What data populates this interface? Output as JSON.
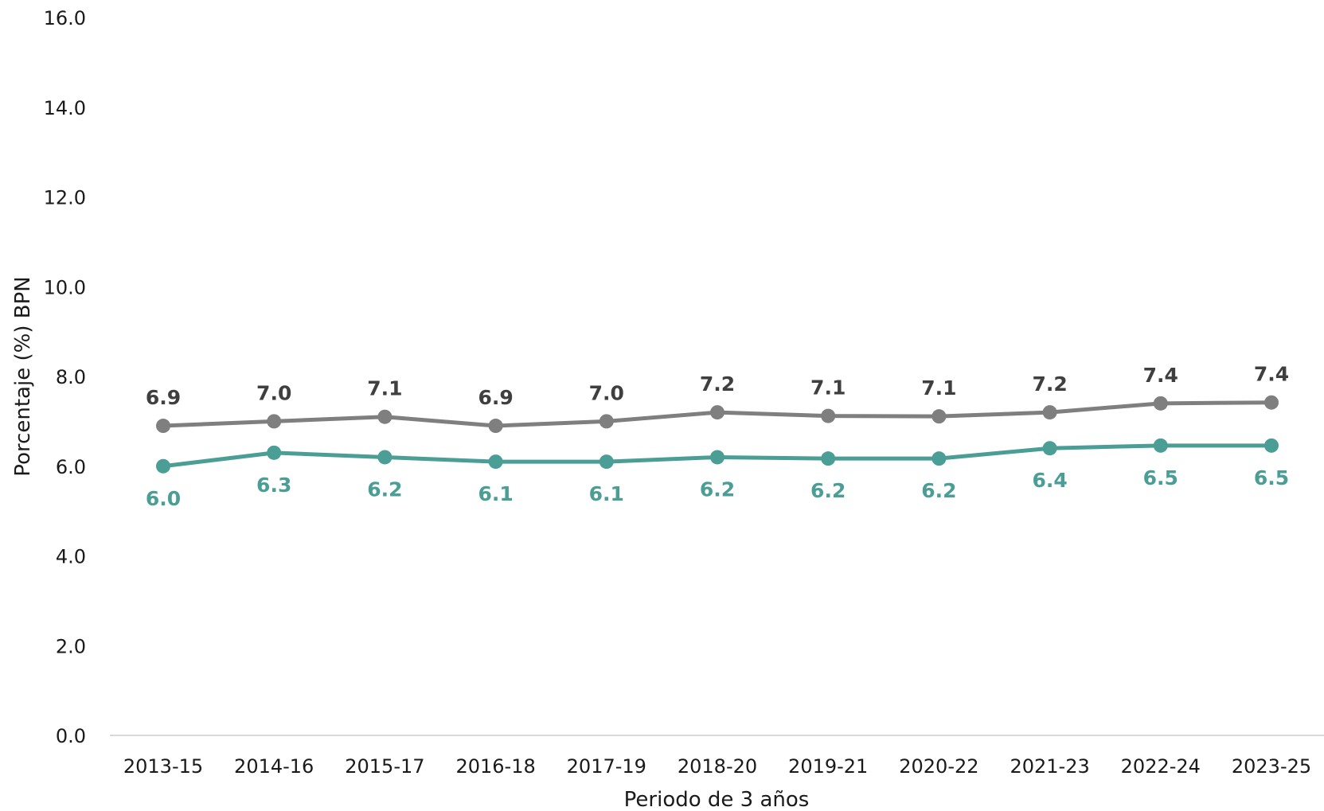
{
  "chart_data": {
    "type": "line",
    "title": "",
    "xlabel": "Periodo de 3 años",
    "ylabel": "Porcentaje (%) BPN",
    "ylim": [
      0,
      16
    ],
    "ytick_step": 2,
    "ytick_labels": [
      "0.0",
      "2.0",
      "4.0",
      "6.0",
      "8.0",
      "10.0",
      "12.0",
      "14.0",
      "16.0"
    ],
    "grid": false,
    "legend": "none",
    "categories": [
      "2013-15",
      "2014-16",
      "2015-17",
      "2016-18",
      "2017-19",
      "2018-20",
      "2019-21",
      "2020-22",
      "2021-23",
      "2022-24",
      "2023-25"
    ],
    "series": [
      {
        "color": "#7f7f7f",
        "label_color": "#3f3f3f",
        "label_position": "above",
        "values": [
          6.9,
          7.0,
          7.1,
          6.9,
          7.0,
          7.2,
          7.12,
          7.11,
          7.2,
          7.4,
          7.42
        ],
        "labels": [
          "6.9",
          "7.0",
          "7.1",
          "6.9",
          "7.0",
          "7.2",
          "7.1",
          "7.1",
          "7.2",
          "7.4",
          "7.4"
        ]
      },
      {
        "color": "#4a9e95",
        "label_color": "#4a9e95",
        "label_position": "below",
        "values": [
          6.0,
          6.3,
          6.2,
          6.1,
          6.1,
          6.2,
          6.17,
          6.17,
          6.4,
          6.46,
          6.46
        ],
        "labels": [
          "6.0",
          "6.3",
          "6.2",
          "6.1",
          "6.1",
          "6.2",
          "6.2",
          "6.2",
          "6.4",
          "6.5",
          "6.5"
        ]
      }
    ]
  }
}
